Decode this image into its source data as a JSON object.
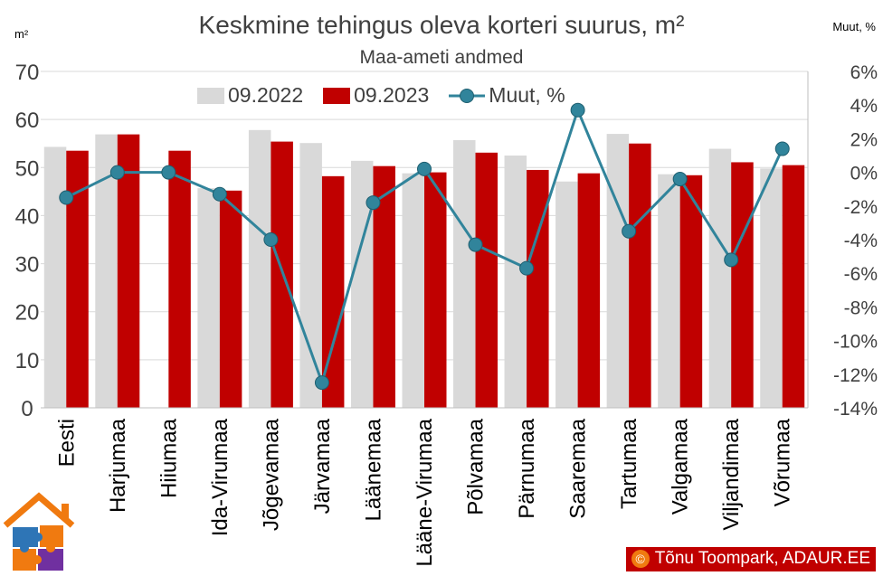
{
  "title": "Keskmine tehingus oleva korteri suurus, m²",
  "subtitle": "Maa-ameti andmed",
  "unit_left": "m²",
  "unit_right": "Muut, %",
  "legend": {
    "s1": "09.2022",
    "s2": "09.2023",
    "s3": "Muut, %"
  },
  "credit": {
    "symbol": "©",
    "text": "Tõnu Toompark, ADAUR.EE"
  },
  "colors": {
    "s1": "#d9d9d9",
    "s2": "#c00000",
    "s3": "#31849b",
    "grid": "#d9d9d9",
    "axis_text": "#404040"
  },
  "chart_data": {
    "type": "bar",
    "categories": [
      "Eesti",
      "Harjumaa",
      "Hiiumaa",
      "Ida-Virumaa",
      "Jõgevamaa",
      "Järvamaa",
      "Läänemaa",
      "Lääne-Virumaa",
      "Põlvamaa",
      "Pärnumaa",
      "Saaremaa",
      "Tartumaa",
      "Valgamaa",
      "Viljandimaa",
      "Võrumaa"
    ],
    "series": [
      {
        "name": "09.2022",
        "type": "bar",
        "axis": "left",
        "values": [
          54.3,
          56.9,
          0,
          45.7,
          57.8,
          55.1,
          51.4,
          48.8,
          55.7,
          52.5,
          47.1,
          57.0,
          48.6,
          53.9,
          49.8
        ]
      },
      {
        "name": "09.2023",
        "type": "bar",
        "axis": "left",
        "values": [
          53.5,
          56.9,
          53.5,
          45.2,
          55.4,
          48.2,
          50.3,
          49.0,
          53.1,
          49.5,
          48.8,
          55.0,
          48.4,
          51.1,
          50.5
        ]
      },
      {
        "name": "Muut, %",
        "type": "line",
        "axis": "right",
        "values": [
          -1.5,
          0.0,
          0.0,
          -1.3,
          -4.0,
          -12.5,
          -1.8,
          0.2,
          -4.3,
          -5.7,
          3.7,
          -3.5,
          -0.4,
          -5.2,
          1.4
        ]
      }
    ],
    "yleft": {
      "min": 0,
      "max": 70,
      "ticks": [
        "0",
        "10",
        "20",
        "30",
        "40",
        "50",
        "60",
        "70"
      ]
    },
    "yright": {
      "min": -14,
      "max": 6,
      "ticks": [
        "-14%",
        "-12%",
        "-10%",
        "-8%",
        "-6%",
        "-4%",
        "-2%",
        "0%",
        "2%",
        "4%",
        "6%"
      ]
    },
    "grid": true,
    "legend_position": "top"
  }
}
